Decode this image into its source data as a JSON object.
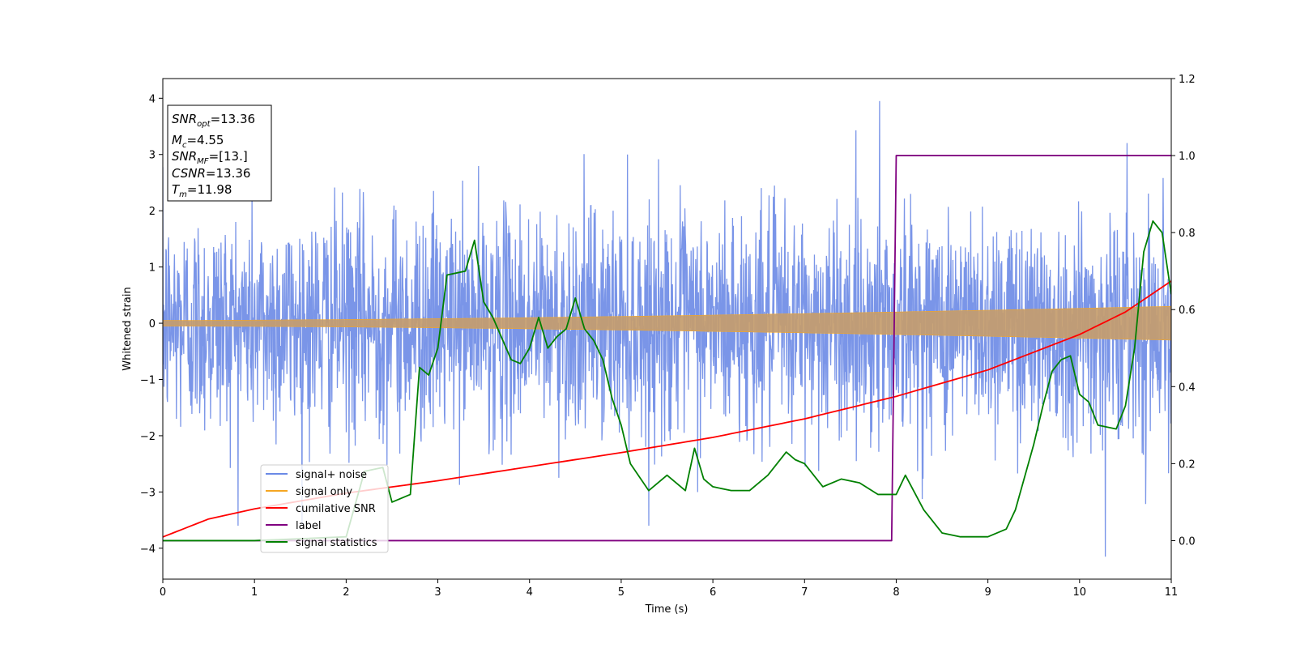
{
  "chart_data": {
    "type": "line",
    "title": "",
    "xlabel": "Time (s)",
    "ylabel": "Whitened strain",
    "xlim": [
      0,
      11
    ],
    "ylim": [
      -4.55,
      4.35
    ],
    "y2lim": [
      -0.1,
      1.2
    ],
    "xticks": [
      "0",
      "1",
      "2",
      "3",
      "4",
      "5",
      "6",
      "7",
      "8",
      "9",
      "10",
      "11"
    ],
    "yticks": [
      "−4",
      "−3",
      "−2",
      "−1",
      "0",
      "1",
      "2",
      "3",
      "4"
    ],
    "y2ticks": [
      "0.0",
      "0.2",
      "0.4",
      "0.6",
      "0.8",
      "1.0",
      "1.2"
    ],
    "grid": false,
    "legend_position": "lower-left",
    "series": [
      {
        "name": "signal+ noise",
        "color": "#6b8ae6",
        "axis": "left",
        "std": 1.0,
        "peak_max": 3.95,
        "peak_min": -4.15
      },
      {
        "name": "signal only",
        "color": "#f5a623",
        "axis": "left",
        "amplitude": [
          [
            0,
            0.05
          ],
          [
            11,
            0.3
          ]
        ]
      },
      {
        "name": "cumilative SNR",
        "color": "#ff0000",
        "axis": "left",
        "x": [
          0,
          0.5,
          1,
          2,
          3,
          4,
          5,
          6,
          7,
          8,
          9,
          10,
          10.5,
          11
        ],
        "y": [
          -3.8,
          -3.48,
          -3.3,
          -3.02,
          -2.8,
          -2.55,
          -2.3,
          -2.03,
          -1.7,
          -1.3,
          -0.83,
          -0.2,
          0.2,
          0.75
        ]
      },
      {
        "name": "label",
        "color": "#800080",
        "axis": "right",
        "x": [
          0,
          7.95,
          8.0,
          11
        ],
        "y": [
          0.0,
          0.0,
          1.0,
          1.0
        ]
      },
      {
        "name": "signal statistics",
        "color": "#008000",
        "axis": "right",
        "x": [
          0,
          1,
          2,
          2.2,
          2.4,
          2.5,
          2.7,
          2.8,
          2.9,
          3.0,
          3.1,
          3.3,
          3.4,
          3.5,
          3.6,
          3.8,
          3.9,
          4.0,
          4.1,
          4.2,
          4.3,
          4.4,
          4.5,
          4.6,
          4.7,
          4.8,
          4.9,
          5.0,
          5.1,
          5.3,
          5.5,
          5.7,
          5.8,
          5.9,
          6.0,
          6.2,
          6.4,
          6.6,
          6.8,
          6.9,
          7.0,
          7.2,
          7.4,
          7.6,
          7.8,
          8.0,
          8.1,
          8.3,
          8.5,
          8.7,
          9.0,
          9.2,
          9.3,
          9.5,
          9.6,
          9.7,
          9.8,
          9.9,
          10.0,
          10.1,
          10.2,
          10.4,
          10.5,
          10.6,
          10.7,
          10.8,
          10.9,
          11.0
        ],
        "y": [
          0.0,
          0.0,
          0.01,
          0.18,
          0.19,
          0.1,
          0.12,
          0.45,
          0.43,
          0.5,
          0.69,
          0.7,
          0.78,
          0.62,
          0.58,
          0.47,
          0.46,
          0.5,
          0.58,
          0.5,
          0.53,
          0.55,
          0.63,
          0.55,
          0.52,
          0.47,
          0.37,
          0.3,
          0.2,
          0.13,
          0.17,
          0.13,
          0.24,
          0.16,
          0.14,
          0.13,
          0.13,
          0.17,
          0.23,
          0.21,
          0.2,
          0.14,
          0.16,
          0.15,
          0.12,
          0.12,
          0.17,
          0.08,
          0.02,
          0.01,
          0.01,
          0.03,
          0.08,
          0.25,
          0.35,
          0.44,
          0.47,
          0.48,
          0.38,
          0.36,
          0.3,
          0.29,
          0.35,
          0.5,
          0.75,
          0.83,
          0.8,
          0.64
        ]
      }
    ],
    "annotation_box": {
      "line1": {
        "base": "SNR",
        "sub": "opt",
        "value": "=13.36"
      },
      "line2": {
        "base": "M",
        "sub": "c",
        "value": "=4.55"
      },
      "line3": {
        "base": "SNR",
        "sub": "MF",
        "value": "=[13.]"
      },
      "line4": {
        "base": "CSNR",
        "sub": "",
        "value": "=13.36"
      },
      "line5": {
        "base": "T",
        "sub": "m",
        "value": "=11.98"
      }
    }
  }
}
